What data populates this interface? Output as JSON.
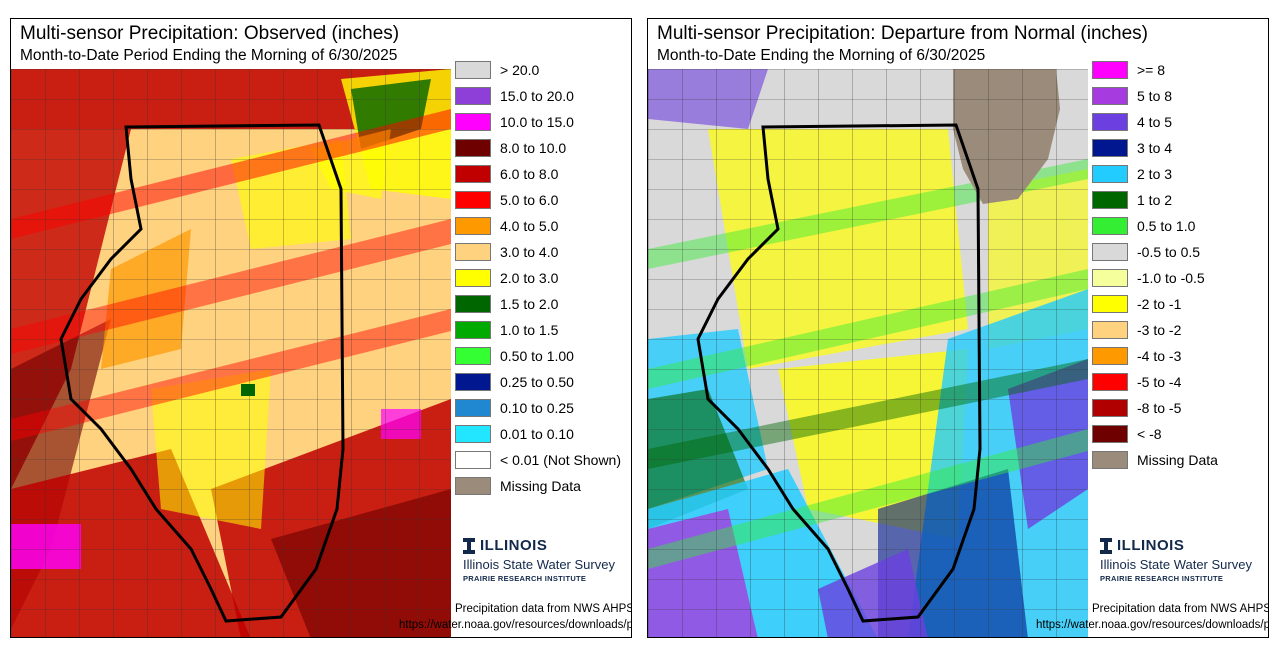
{
  "panels": [
    {
      "title": "Multi-sensor Precipitation: Observed (inches)",
      "subtitle": "Month-to-Date Period Ending the Morning of 6/30/2025",
      "legend": [
        {
          "label": "> 20.0",
          "color": "#d9d9d9"
        },
        {
          "label": "15.0 to 20.0",
          "color": "#8e3fd8"
        },
        {
          "label": "10.0 to 15.0",
          "color": "#ff00ff"
        },
        {
          "label": "8.0 to 10.0",
          "color": "#6e0000"
        },
        {
          "label": "6.0 to 8.0",
          "color": "#c00000"
        },
        {
          "label": "5.0 to 6.0",
          "color": "#ff0000"
        },
        {
          "label": "4.0 to 5.0",
          "color": "#ff9900"
        },
        {
          "label": "3.0 to 4.0",
          "color": "#ffd27f"
        },
        {
          "label": "2.0 to 3.0",
          "color": "#ffff00"
        },
        {
          "label": "1.5 to 2.0",
          "color": "#006600"
        },
        {
          "label": "1.0 to 1.5",
          "color": "#00aa00"
        },
        {
          "label": "0.50 to 1.00",
          "color": "#33ff33"
        },
        {
          "label": "0.25 to 0.50",
          "color": "#00178f"
        },
        {
          "label": "0.10 to 0.25",
          "color": "#1f88d0"
        },
        {
          "label": "0.01 to 0.10",
          "color": "#22e5ff"
        },
        {
          "label": "< 0.01 (Not Shown)",
          "color": "#ffffff"
        },
        {
          "label": "Missing Data",
          "color": "#9b8b7a"
        }
      ]
    },
    {
      "title": "Multi-sensor Precipitation: Departure from Normal (inches)",
      "subtitle": "Month-to-Date Ending the Morning of 6/30/2025",
      "legend": [
        {
          "label": ">= 8",
          "color": "#ff00ff"
        },
        {
          "label": "5 to 8",
          "color": "#a63ce0"
        },
        {
          "label": "4 to 5",
          "color": "#6c40e0"
        },
        {
          "label": "3 to 4",
          "color": "#00178f"
        },
        {
          "label": "2 to 3",
          "color": "#22ccff"
        },
        {
          "label": "1 to 2",
          "color": "#006600"
        },
        {
          "label": "0.5 to 1.0",
          "color": "#33ee33"
        },
        {
          "label": "-0.5 to 0.5",
          "color": "#d9d9d9"
        },
        {
          "label": "-1.0 to -0.5",
          "color": "#f5ff9c"
        },
        {
          "label": "-2 to -1",
          "color": "#ffff00"
        },
        {
          "label": "-3 to -2",
          "color": "#ffd27f"
        },
        {
          "label": "-4 to -3",
          "color": "#ff9900"
        },
        {
          "label": "-5 to -4",
          "color": "#ff0000"
        },
        {
          "label": "-8 to -5",
          "color": "#b00000"
        },
        {
          "label": "< -8",
          "color": "#6e0000"
        },
        {
          "label": "Missing Data",
          "color": "#9b8b7a"
        }
      ]
    }
  ],
  "logo": {
    "wordmark": "ILLINOIS",
    "survey": "Illinois State Water Survey",
    "institute": "PRAIRIE RESEARCH INSTITUTE"
  },
  "credit": {
    "line1": "Precipitation data from NWS AHPS:",
    "url": "https://water.noaa.gov/resources/downloads/precip"
  }
}
